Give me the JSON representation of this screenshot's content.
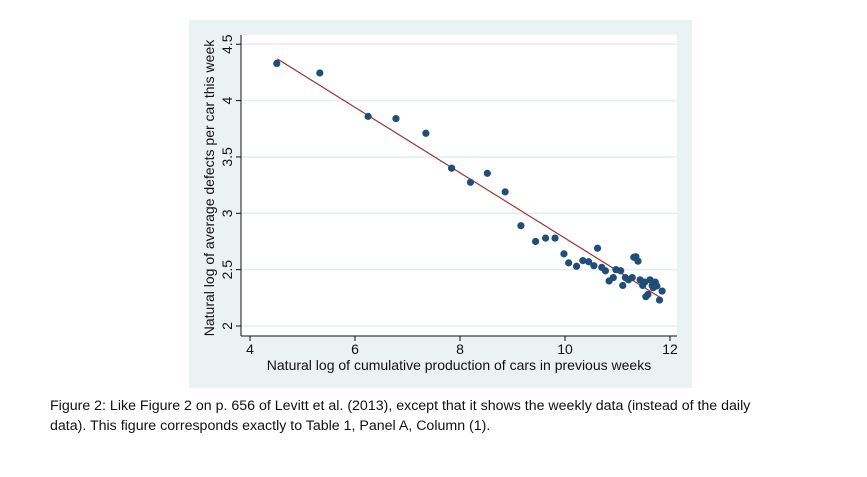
{
  "chart_data": {
    "type": "scatter",
    "title": "",
    "xlabel": "Natural log of cumulative production of cars in previous weeks",
    "ylabel": "Natural log of average defects per car this week",
    "xlim": [
      3.85,
      12.15
    ],
    "ylim": [
      1.91,
      4.58
    ],
    "xticks": [
      "4",
      "6",
      "8",
      "10",
      "12"
    ],
    "yticks": [
      "2",
      "2.5",
      "3",
      "3.5",
      "4",
      "4.5"
    ],
    "grid": "horizontal",
    "legend": "none",
    "colors": {
      "points": "#1f4e79",
      "fit_line": "#a0302f",
      "background": "#eaf2f3",
      "plot": "#ffffff",
      "grid": "#e4eef0"
    },
    "points": [
      [
        4.51,
        4.33
      ],
      [
        5.33,
        4.245
      ],
      [
        6.25,
        3.86
      ],
      [
        6.78,
        3.84
      ],
      [
        7.35,
        3.71
      ],
      [
        7.84,
        3.4
      ],
      [
        8.2,
        3.275
      ],
      [
        8.52,
        3.355
      ],
      [
        8.86,
        3.19
      ],
      [
        9.16,
        2.89
      ],
      [
        9.44,
        2.75
      ],
      [
        9.63,
        2.78
      ],
      [
        9.81,
        2.78
      ],
      [
        9.98,
        2.64
      ],
      [
        10.07,
        2.56
      ],
      [
        10.22,
        2.53
      ],
      [
        10.34,
        2.58
      ],
      [
        10.45,
        2.57
      ],
      [
        10.55,
        2.535
      ],
      [
        10.62,
        2.69
      ],
      [
        10.7,
        2.52
      ],
      [
        10.77,
        2.49
      ],
      [
        10.84,
        2.4
      ],
      [
        10.92,
        2.43
      ],
      [
        10.97,
        2.5
      ],
      [
        11.06,
        2.49
      ],
      [
        11.1,
        2.36
      ],
      [
        11.15,
        2.43
      ],
      [
        11.21,
        2.41
      ],
      [
        11.28,
        2.43
      ],
      [
        11.31,
        2.61
      ],
      [
        11.35,
        2.615
      ],
      [
        11.39,
        2.575
      ],
      [
        11.43,
        2.41
      ],
      [
        11.48,
        2.36
      ],
      [
        11.52,
        2.39
      ],
      [
        11.54,
        2.26
      ],
      [
        11.58,
        2.28
      ],
      [
        11.62,
        2.41
      ],
      [
        11.66,
        2.36
      ],
      [
        11.68,
        2.34
      ],
      [
        11.72,
        2.39
      ],
      [
        11.75,
        2.355
      ],
      [
        11.8,
        2.23
      ],
      [
        11.85,
        2.31
      ]
    ],
    "fit_line": {
      "x": [
        4.52,
        11.84
      ],
      "y": [
        4.37,
        2.245
      ]
    }
  },
  "caption": {
    "line1": "Figure 2: Like Figure 2 on p. 656 of Levitt et al. (2013), except that it shows the weekly data (instead of the daily",
    "line2": "data). This figure corresponds exactly to Table 1, Panel A, Column (1)."
  }
}
